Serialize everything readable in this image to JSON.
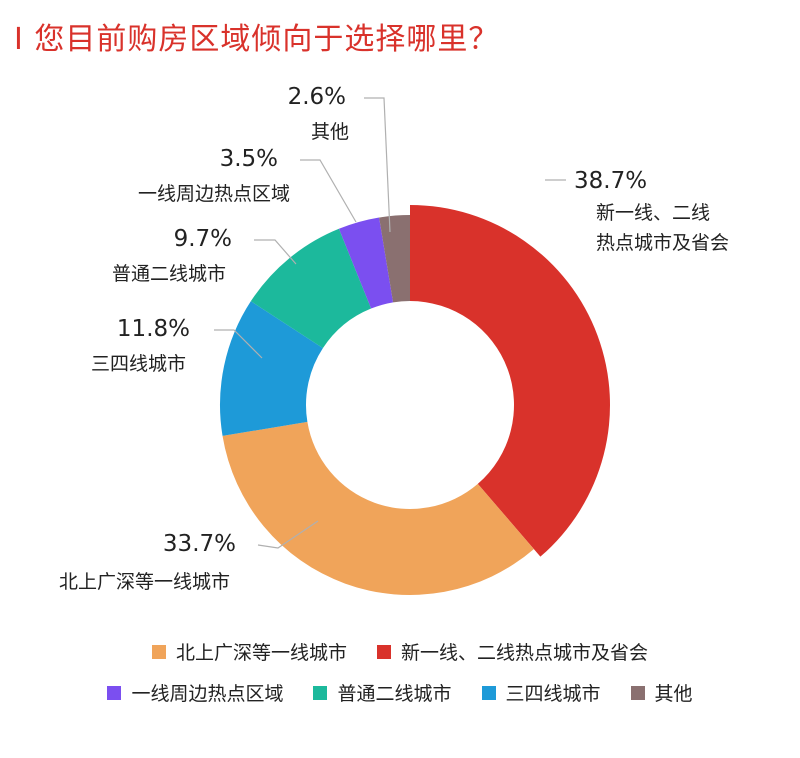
{
  "title": "I 您目前购房区域倾向于选择哪里？",
  "colors": {
    "title": "#d9322b"
  },
  "chart_data": {
    "type": "donut",
    "title": "I 您目前购房区域倾向于选择哪里？",
    "unit": "%",
    "slices": [
      {
        "name": "新一线、二线热点城市及省会",
        "label_lines": [
          "新一线、二线",
          "热点城市及省会"
        ],
        "value": 38.7,
        "pct_label": "38.7%",
        "color": "#d9322b"
      },
      {
        "name": "北上广深等一线城市",
        "label_lines": [
          "北上广深等一线城市"
        ],
        "value": 33.7,
        "pct_label": "33.7%",
        "color": "#f0a45a"
      },
      {
        "name": "三四线城市",
        "label_lines": [
          "三四线城市"
        ],
        "value": 11.8,
        "pct_label": "11.8%",
        "color": "#1e9ad8"
      },
      {
        "name": "普通二线城市",
        "label_lines": [
          "普通二线城市"
        ],
        "value": 9.7,
        "pct_label": "9.7%",
        "color": "#1cb99c"
      },
      {
        "name": "一线周边热点区域",
        "label_lines": [
          "一线周边热点区域"
        ],
        "value": 3.5,
        "pct_label": "3.5%",
        "color": "#7b4ff0"
      },
      {
        "name": "其他",
        "label_lines": [
          "其他"
        ],
        "value": 2.6,
        "pct_label": "2.6%",
        "color": "#8a7070"
      }
    ],
    "legend": [
      [
        "北上广深等一线城市",
        "新一线、二线热点城市及省会"
      ],
      [
        "一线周边热点区域",
        "普通二线城市",
        "三四线城市",
        "其他"
      ]
    ]
  }
}
